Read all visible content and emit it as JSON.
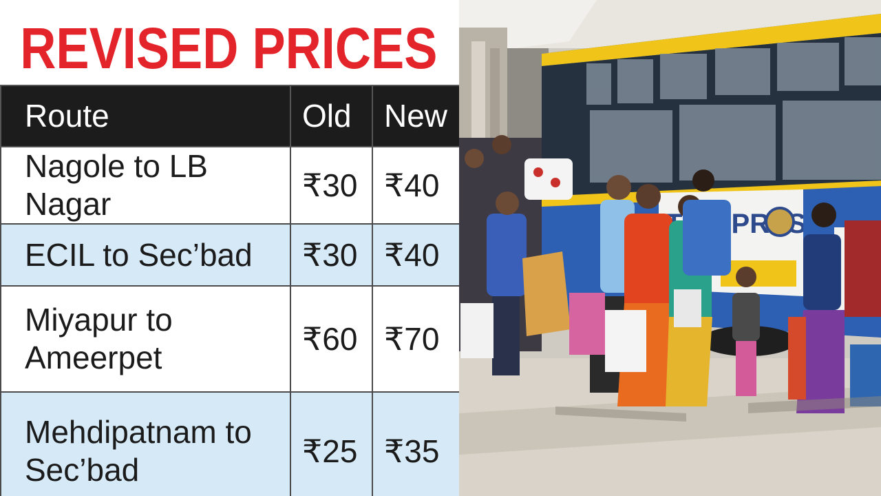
{
  "title": "REVISED PRICES",
  "table": {
    "headers": {
      "route": "Route",
      "old": "Old",
      "new": "New"
    },
    "rows": [
      {
        "route": "Nagole to LB Nagar",
        "old": "₹30",
        "new": "₹40"
      },
      {
        "route": "ECIL to Sec’bad",
        "old": "₹30",
        "new": "₹40"
      },
      {
        "route": "Miyapur to\nAmeerpet",
        "old": "₹60",
        "new": "₹70"
      },
      {
        "route": "Mehdipatnam to\nSec’bad",
        "old": "₹25",
        "new": "₹35"
      }
    ]
  },
  "photo": {
    "bus_sign_text": "TRO PRESS"
  },
  "colors": {
    "title_red": "#e3242b",
    "header_dark": "#1c1c1c",
    "row_blue": "#d6e9f7",
    "bus_yellow": "#f0c419",
    "bus_blue": "#2d5fb3"
  }
}
